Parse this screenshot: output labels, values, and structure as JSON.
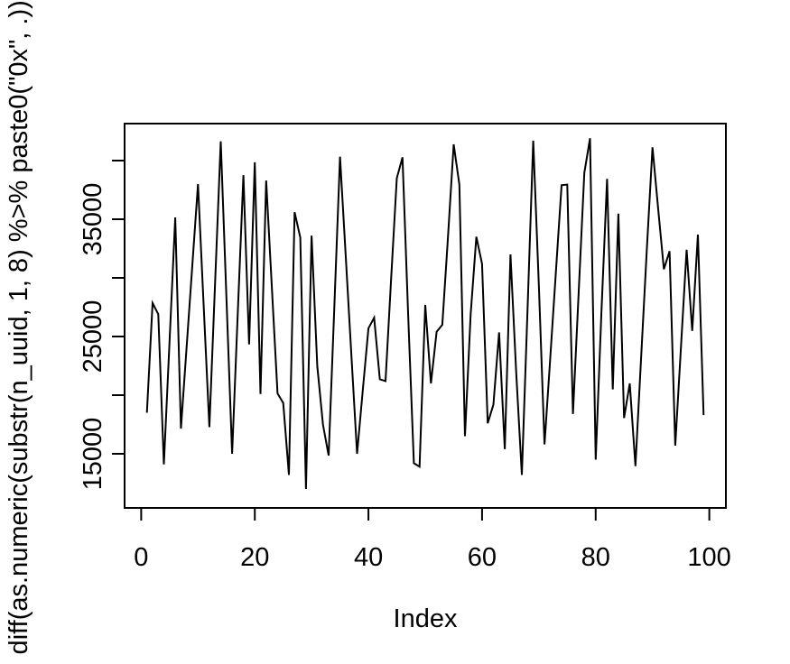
{
  "chart_data": {
    "type": "line",
    "title": "",
    "xlabel": "Index",
    "ylabel": "diff(as.numeric(substr(n_uuid, 1, 8) %>% paste0(\"0x\", .)))",
    "x_start_index": 1,
    "x_ticks": [
      0,
      20,
      40,
      60,
      80,
      100
    ],
    "y_ticks_all": [
      15000,
      20000,
      25000,
      30000,
      35000,
      40000
    ],
    "y_ticks_labeled": [
      15000,
      25000,
      35000
    ],
    "xlim": [
      -2.92,
      102.92
    ],
    "ylim": [
      10385,
      43153
    ],
    "grid": false,
    "legend": null,
    "line_color": "#000000",
    "background_color": "#ffffff",
    "values": [
      18500,
      27850,
      26900,
      14100,
      24600,
      35150,
      17150,
      24100,
      31050,
      38000,
      27600,
      17280,
      29500,
      41640,
      28300,
      15000,
      26900,
      38750,
      24330,
      39850,
      20100,
      38300,
      29200,
      20150,
      19330,
      13200,
      35600,
      33440,
      12000,
      33600,
      22500,
      17500,
      14850,
      27500,
      40330,
      31900,
      23400,
      15000,
      20400,
      25700,
      26600,
      21350,
      21200,
      29900,
      38500,
      40280,
      26800,
      14200,
      13900,
      27700,
      21000,
      25400,
      26000,
      33500,
      41385,
      37950,
      16500,
      26900,
      33500,
      31200,
      17600,
      19200,
      25350,
      15400,
      32000,
      22000,
      13200,
      27300,
      41700,
      29200,
      15800,
      23100,
      30500,
      37900,
      37950,
      18400,
      28700,
      38950,
      41900,
      14500,
      27000,
      38440,
      20490,
      35480,
      18050,
      21000,
      13950,
      23200,
      32400,
      41130,
      35870,
      30740,
      32280,
      15700,
      24050,
      32400,
      25480,
      33690,
      18300
    ]
  }
}
